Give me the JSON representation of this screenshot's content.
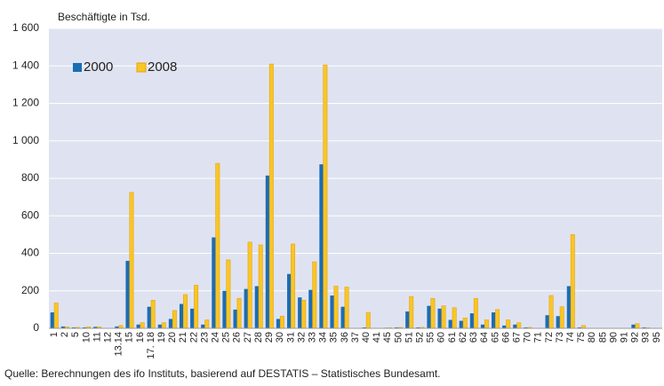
{
  "chart_data": {
    "type": "bar",
    "y_label": "Beschäftigte in Tsd.",
    "source": "Quelle: Berechnungen des ifo Instituts, basierend auf DESTATIS – Statistisches Bundesamt.",
    "categories": [
      "1",
      "2",
      "5",
      "10",
      "11",
      "12",
      "13.14",
      "15",
      "16",
      "17. 18",
      "19",
      "20",
      "21",
      "22",
      "23",
      "24",
      "25",
      "26",
      "27",
      "28",
      "29",
      "30",
      "31",
      "32",
      "33",
      "34",
      "35",
      "36",
      "37",
      "40",
      "41",
      "45",
      "50",
      "51",
      "52",
      "55",
      "60",
      "61",
      "62",
      "63",
      "64",
      "65",
      "66",
      "67",
      "70",
      "71",
      "72",
      "73",
      "74",
      "75",
      "80",
      "85",
      "90",
      "91",
      "92",
      "93",
      "95"
    ],
    "series": [
      {
        "name": "2000",
        "color": "#1b6db3",
        "values": [
          85,
          10,
          5,
          5,
          8,
          0,
          10,
          360,
          20,
          115,
          20,
          50,
          130,
          105,
          20,
          485,
          200,
          100,
          210,
          225,
          815,
          50,
          290,
          165,
          205,
          875,
          175,
          115,
          0,
          5,
          0,
          3,
          5,
          90,
          5,
          120,
          105,
          45,
          40,
          80,
          20,
          85,
          15,
          20,
          5,
          0,
          70,
          65,
          225,
          5,
          0,
          0,
          0,
          0,
          20,
          5,
          0
        ]
      },
      {
        "name": "2008",
        "color": "#f9c623",
        "values": [
          135,
          8,
          5,
          8,
          8,
          0,
          15,
          725,
          30,
          150,
          30,
          95,
          180,
          230,
          45,
          880,
          365,
          160,
          460,
          445,
          1410,
          65,
          450,
          150,
          355,
          1405,
          225,
          220,
          0,
          85,
          0,
          3,
          5,
          170,
          5,
          160,
          120,
          110,
          55,
          160,
          45,
          100,
          45,
          30,
          5,
          0,
          175,
          115,
          500,
          15,
          0,
          0,
          0,
          0,
          25,
          3,
          0
        ]
      }
    ],
    "ylim": [
      0,
      1600
    ],
    "yticks": [
      0,
      200,
      400,
      600,
      800,
      {
        "value": 1000,
        "label": "1 000"
      },
      {
        "value": 1200,
        "label": "1 200"
      },
      {
        "value": 1400,
        "label": "1 400"
      },
      {
        "value": 1600,
        "label": "1 600"
      }
    ],
    "grid": true,
    "legend": "top-left"
  }
}
